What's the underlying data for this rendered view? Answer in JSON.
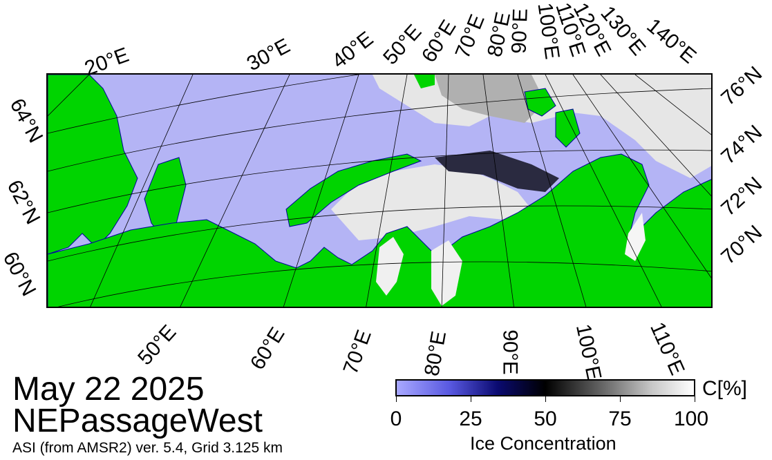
{
  "map": {
    "date": "May 22 2025",
    "region": "NEPassageWest",
    "credit": "ASI (from AMSR2) ver. 5.4,  Grid 3.125 km",
    "colors": {
      "land": "#00d400",
      "open_water": "#b4b4f5",
      "ice_high": "#ffffff",
      "ice_mid": "#000000",
      "coast": "#0000a0"
    },
    "top_lon_labels": [
      "20°E",
      "30°E",
      "40°E",
      "50°E",
      "60°E",
      "70°E",
      "80°E",
      "90°E",
      "100°E",
      "110°E",
      "120°E",
      "130°E",
      "140°E"
    ],
    "bottom_lon_labels": [
      "50°E",
      "60°E",
      "70°E",
      "80°E",
      "90°E",
      "100°E",
      "110°E"
    ],
    "left_lat_labels": [
      "64°N",
      "62°N",
      "60°N"
    ],
    "right_lat_labels": [
      "76°N",
      "74°N",
      "72°N",
      "70°N"
    ]
  },
  "colorbar": {
    "unit": "C[%]",
    "title": "Ice Concentration",
    "ticks": [
      "0",
      "25",
      "50",
      "75",
      "100"
    ]
  }
}
